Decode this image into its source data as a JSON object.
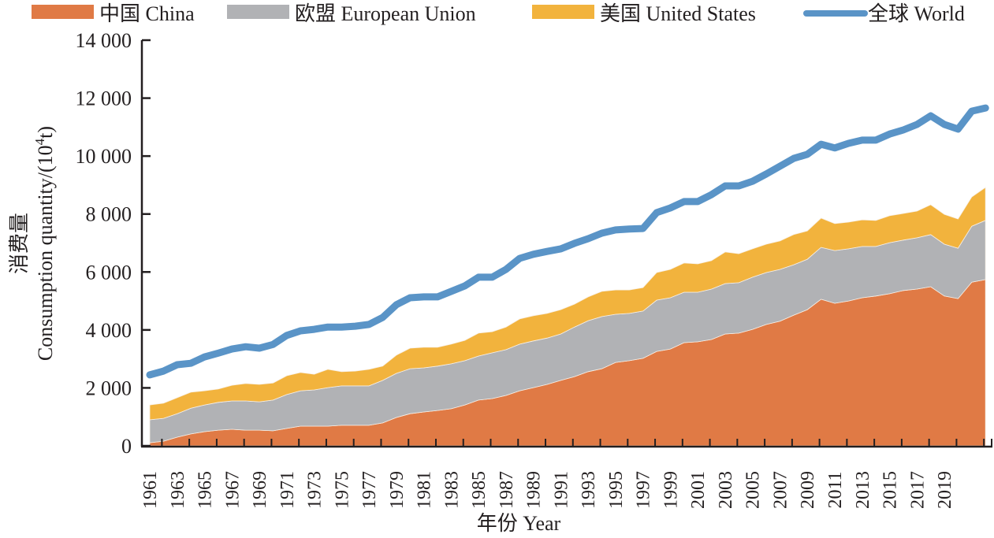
{
  "chart_data": {
    "type": "area",
    "stacked": true,
    "title": "",
    "xlabel": "年份 Year",
    "ylabel_line1": "消费量",
    "ylabel_line2": "Consumption quantity/(10",
    "ylabel_sup": "4",
    "ylabel_end": "t)",
    "ylim": [
      0,
      14000
    ],
    "yticks": [
      0,
      2000,
      4000,
      6000,
      8000,
      10000,
      12000,
      14000
    ],
    "ytick_labels": [
      "0",
      "2 000",
      "4 000",
      "6 000",
      "8 000",
      "10 000",
      "12 000",
      "14 000"
    ],
    "xtick_labels": [
      "1961",
      "1963",
      "1965",
      "1967",
      "1969",
      "1971",
      "1973",
      "1975",
      "1977",
      "1979",
      "1981",
      "1983",
      "1985",
      "1987",
      "1989",
      "1991",
      "1993",
      "1995",
      "1997",
      "1999",
      "2001",
      "2003",
      "2005",
      "2007",
      "2009",
      "2011",
      "2013",
      "2015",
      "2017",
      "2019"
    ],
    "grid": false,
    "legend_position": "top",
    "x": [
      1961,
      1962,
      1963,
      1964,
      1965,
      1966,
      1967,
      1968,
      1969,
      1970,
      1971,
      1972,
      1973,
      1974,
      1975,
      1976,
      1977,
      1978,
      1979,
      1980,
      1981,
      1982,
      1983,
      1984,
      1985,
      1986,
      1987,
      1988,
      1989,
      1990,
      1991,
      1992,
      1993,
      1994,
      1995,
      1996,
      1997,
      1998,
      1999,
      2000,
      2001,
      2002,
      2003,
      2004,
      2005,
      2006,
      2007,
      2008,
      2009,
      2010,
      2011,
      2012,
      2013,
      2014,
      2015,
      2016,
      2017,
      2018,
      2019,
      2020,
      2021,
      2022
    ],
    "series": [
      {
        "name": "中国 China",
        "kind": "area",
        "color": "#e07a45",
        "values": [
          110,
          160,
          300,
          410,
          490,
          540,
          570,
          540,
          540,
          520,
          600,
          680,
          680,
          680,
          710,
          710,
          710,
          790,
          980,
          1110,
          1170,
          1220,
          1280,
          1410,
          1580,
          1630,
          1740,
          1900,
          2010,
          2120,
          2260,
          2390,
          2560,
          2660,
          2880,
          2940,
          3020,
          3260,
          3340,
          3560,
          3590,
          3670,
          3860,
          3890,
          4020,
          4190,
          4300,
          4510,
          4700,
          5060,
          4920,
          5000,
          5110,
          5170,
          5250,
          5360,
          5410,
          5490,
          5170,
          5080,
          5650,
          5740
        ]
      },
      {
        "name": "欧盟 European Union",
        "kind": "area",
        "color": "#b1b2b5",
        "values": [
          790,
          790,
          810,
          890,
          920,
          960,
          980,
          1010,
          980,
          1060,
          1170,
          1220,
          1250,
          1330,
          1360,
          1360,
          1360,
          1470,
          1520,
          1550,
          1520,
          1530,
          1550,
          1530,
          1520,
          1580,
          1580,
          1610,
          1610,
          1600,
          1600,
          1710,
          1760,
          1800,
          1660,
          1630,
          1630,
          1770,
          1770,
          1740,
          1710,
          1740,
          1740,
          1740,
          1800,
          1790,
          1790,
          1740,
          1740,
          1790,
          1820,
          1800,
          1770,
          1710,
          1760,
          1740,
          1770,
          1800,
          1790,
          1740,
          1930,
          2040
        ]
      },
      {
        "name": "美国 United States",
        "kind": "area",
        "color": "#f2b33d",
        "values": [
          510,
          520,
          550,
          550,
          490,
          460,
          540,
          600,
          600,
          590,
          650,
          630,
          540,
          630,
          490,
          510,
          570,
          490,
          630,
          710,
          710,
          650,
          680,
          700,
          790,
          730,
          780,
          870,
          870,
          850,
          840,
          790,
          820,
          870,
          840,
          810,
          810,
          950,
          980,
          1010,
          980,
          980,
          1090,
          1000,
          980,
          980,
          980,
          1040,
          980,
          1010,
          930,
          920,
          920,
          900,
          930,
          920,
          920,
          1030,
          1030,
          1010,
          1010,
          1140
        ]
      },
      {
        "name": "全球 World",
        "kind": "line",
        "color": "#5a94c7",
        "values": [
          2450,
          2580,
          2800,
          2850,
          3070,
          3200,
          3340,
          3420,
          3370,
          3500,
          3810,
          3970,
          4020,
          4100,
          4100,
          4130,
          4190,
          4430,
          4870,
          5110,
          5140,
          5140,
          5330,
          5520,
          5820,
          5820,
          6090,
          6470,
          6610,
          6710,
          6800,
          6990,
          7150,
          7340,
          7450,
          7480,
          7500,
          8050,
          8210,
          8430,
          8430,
          8670,
          8970,
          8970,
          9130,
          9380,
          9650,
          9920,
          10060,
          10410,
          10280,
          10440,
          10550,
          10550,
          10760,
          10900,
          11090,
          11390,
          11090,
          10930,
          11550,
          11660
        ]
      }
    ]
  }
}
